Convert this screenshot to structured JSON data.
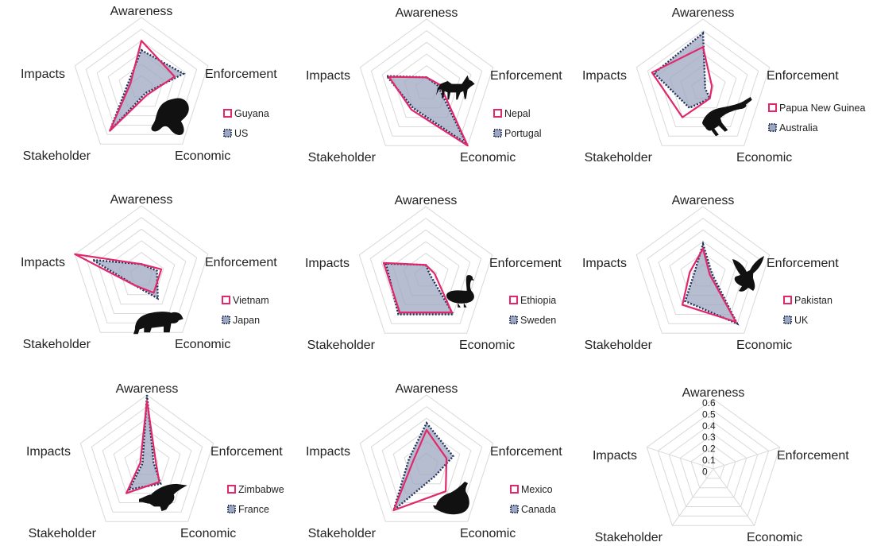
{
  "chart_data": [
    {
      "type": "radar",
      "axes": [
        "Awareness",
        "Enforcement",
        "Economic",
        "Stakeholder",
        "Impacts"
      ],
      "rlim": [
        0,
        0.6
      ],
      "grid": true,
      "legend_position": "right",
      "animal_icon": "lemur-icon",
      "series": [
        {
          "name": "Guyana",
          "values": [
            0.4,
            0.3,
            0.08,
            0.46,
            0.1
          ]
        },
        {
          "name": "US",
          "values": [
            0.32,
            0.38,
            0.06,
            0.46,
            0.12
          ]
        }
      ]
    },
    {
      "type": "radar",
      "axes": [
        "Awareness",
        "Enforcement",
        "Economic",
        "Stakeholder",
        "Impacts"
      ],
      "rlim": [
        0,
        0.6
      ],
      "grid": true,
      "legend_position": "right",
      "animal_icon": "wolf-icon",
      "series": [
        {
          "name": "Nepal",
          "values": [
            0.1,
            0.12,
            0.6,
            0.22,
            0.34
          ]
        },
        {
          "name": "Portugal",
          "values": [
            0.1,
            0.1,
            0.58,
            0.2,
            0.36
          ]
        }
      ]
    },
    {
      "type": "radar",
      "axes": [
        "Awareness",
        "Enforcement",
        "Economic",
        "Stakeholder",
        "Impacts"
      ],
      "rlim": [
        0,
        0.6
      ],
      "grid": true,
      "legend_position": "right",
      "animal_icon": "crocodile-icon",
      "series": [
        {
          "name": "Papua New Guinea",
          "values": [
            0.36,
            0.08,
            0.1,
            0.3,
            0.46
          ]
        },
        {
          "name": "Australia",
          "values": [
            0.48,
            0.02,
            0.1,
            0.2,
            0.44
          ]
        }
      ]
    },
    {
      "type": "radar",
      "axes": [
        "Awareness",
        "Enforcement",
        "Economic",
        "Stakeholder",
        "Impacts"
      ],
      "rlim": [
        0,
        0.6
      ],
      "grid": true,
      "legend_position": "right",
      "animal_icon": "bear-icon",
      "series": [
        {
          "name": "Vietnam",
          "values": [
            0.1,
            0.18,
            0.18,
            0.1,
            0.6
          ]
        },
        {
          "name": "Japan",
          "values": [
            0.1,
            0.14,
            0.24,
            0.1,
            0.44
          ]
        }
      ]
    },
    {
      "type": "radar",
      "axes": [
        "Awareness",
        "Enforcement",
        "Economic",
        "Stakeholder",
        "Impacts"
      ],
      "rlim": [
        0,
        0.6
      ],
      "grid": true,
      "legend_position": "right",
      "animal_icon": "goose-icon",
      "series": [
        {
          "name": "Ethiopia",
          "values": [
            0.1,
            0.08,
            0.38,
            0.38,
            0.38
          ]
        },
        {
          "name": "Sweden",
          "values": [
            0.1,
            0.04,
            0.4,
            0.4,
            0.36
          ]
        }
      ]
    },
    {
      "type": "radar",
      "axes": [
        "Awareness",
        "Enforcement",
        "Economic",
        "Stakeholder",
        "Impacts"
      ],
      "rlim": [
        0,
        0.6
      ],
      "grid": true,
      "legend_position": "right",
      "animal_icon": "eagle-icon",
      "series": [
        {
          "name": "Pakistan",
          "values": [
            0.24,
            0.06,
            0.48,
            0.3,
            0.12
          ]
        },
        {
          "name": "UK",
          "values": [
            0.28,
            0.08,
            0.5,
            0.26,
            0.08
          ]
        }
      ]
    },
    {
      "type": "radar",
      "axes": [
        "Awareness",
        "Enforcement",
        "Economic",
        "Stakeholder",
        "Impacts"
      ],
      "rlim": [
        0,
        0.6
      ],
      "grid": true,
      "legend_position": "right",
      "animal_icon": "vulture-icon",
      "series": [
        {
          "name": "Zimbabwe",
          "values": [
            0.55,
            0.08,
            0.18,
            0.3,
            0.06
          ]
        },
        {
          "name": "France",
          "values": [
            0.6,
            0.06,
            0.2,
            0.26,
            0.04
          ]
        }
      ]
    },
    {
      "type": "radar",
      "axes": [
        "Awareness",
        "Enforcement",
        "Economic",
        "Stakeholder",
        "Impacts"
      ],
      "rlim": [
        0,
        0.6
      ],
      "grid": true,
      "legend_position": "right",
      "animal_icon": "otter-icon",
      "series": [
        {
          "name": "Mexico",
          "values": [
            0.3,
            0.18,
            0.28,
            0.48,
            0.12
          ]
        },
        {
          "name": "Canada",
          "values": [
            0.36,
            0.24,
            0.12,
            0.48,
            0.16
          ]
        }
      ]
    },
    {
      "type": "radar",
      "axes": [
        "Awareness",
        "Enforcement",
        "Economic",
        "Stakeholder",
        "Impacts"
      ],
      "rlim": [
        0,
        0.6
      ],
      "grid": true,
      "tick_labels": [
        "0.6",
        "0.5",
        "0.4",
        "0.3",
        "0.2",
        "0.1",
        "0"
      ],
      "series": []
    }
  ],
  "colors": {
    "series_a_stroke": "#e0286b",
    "series_b_stroke": "#22335a",
    "series_b_fill": "#9ea7c2",
    "grid": "#d9d9d9",
    "icon": "#111111"
  }
}
